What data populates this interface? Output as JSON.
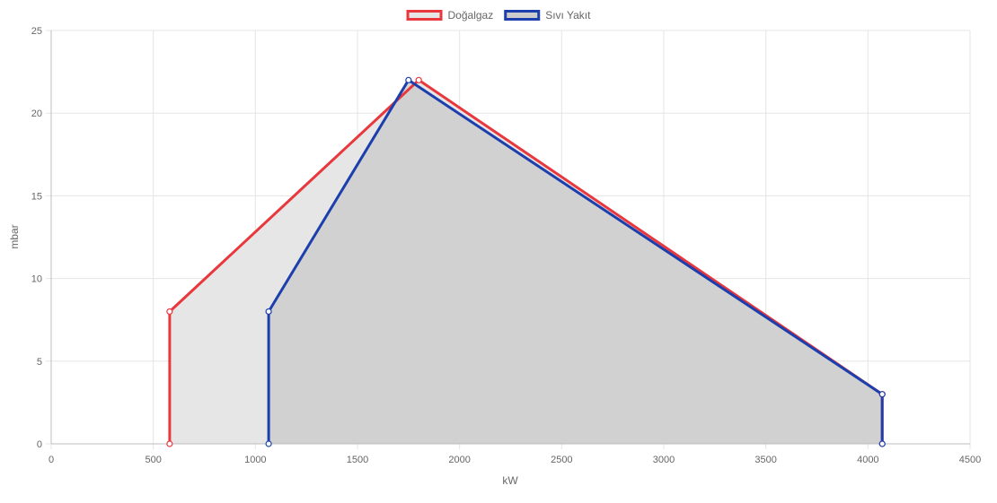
{
  "chart_data": {
    "type": "area",
    "xlabel": "kW",
    "ylabel": "mbar",
    "xlim": [
      0,
      4500
    ],
    "ylim": [
      0,
      25
    ],
    "x_ticks": [
      0,
      500,
      1000,
      1500,
      2000,
      2500,
      3000,
      3500,
      4000,
      4500
    ],
    "y_ticks": [
      0,
      5,
      10,
      15,
      20,
      25
    ],
    "grid": true,
    "legend_position": "top-center",
    "series": [
      {
        "name": "Doğalgaz",
        "color": "#e8383d",
        "fill": "#e6e6e6",
        "points": [
          [
            580,
            0
          ],
          [
            580,
            8
          ],
          [
            1800,
            22
          ],
          [
            4070,
            3
          ],
          [
            4070,
            0
          ]
        ]
      },
      {
        "name": "Sıvı Yakıt",
        "color": "#1c3fad",
        "fill": "#cccccc",
        "points": [
          [
            1065,
            0
          ],
          [
            1065,
            8
          ],
          [
            1750,
            22
          ],
          [
            4070,
            3
          ],
          [
            4070,
            0
          ]
        ]
      }
    ]
  }
}
